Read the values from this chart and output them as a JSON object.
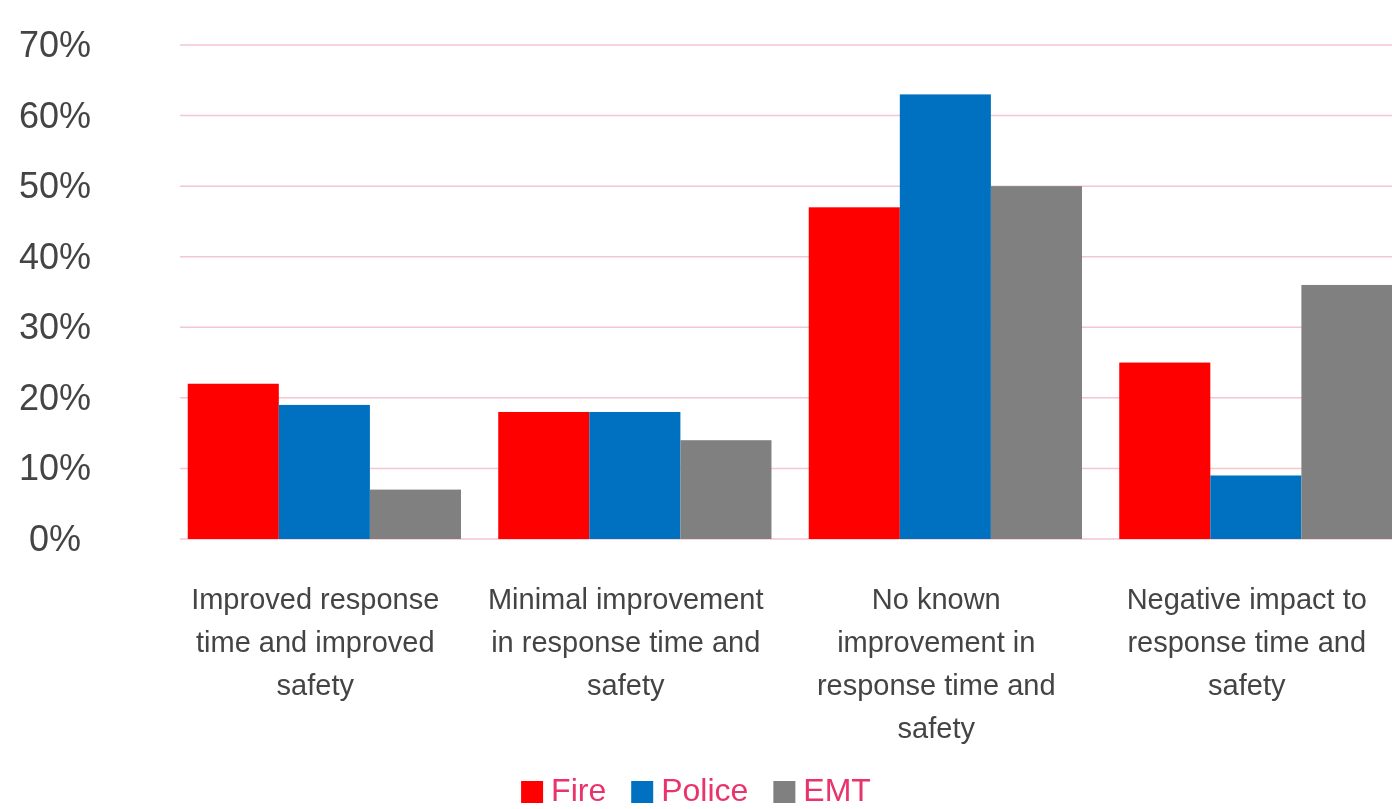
{
  "chart_data": {
    "type": "bar",
    "categories": [
      "Improved response time and improved safety",
      "Minimal improvement in response time and safety",
      "No known improvement in response time and safety",
      "Negative impact to response time and safety"
    ],
    "series": [
      {
        "name": "Fire",
        "color": "#ff0000",
        "values": [
          22,
          18,
          47,
          25
        ]
      },
      {
        "name": "Police",
        "color": "#0070c0",
        "values": [
          19,
          18,
          63,
          9
        ]
      },
      {
        "name": "EMT",
        "color": "#808080",
        "values": [
          7,
          14,
          50,
          36
        ]
      }
    ],
    "ylim": [
      0,
      70
    ],
    "yticks": [
      {
        "value": 0,
        "label": "0%"
      },
      {
        "value": 10,
        "label": "10%"
      },
      {
        "value": 20,
        "label": "20%"
      },
      {
        "value": 30,
        "label": "30%"
      },
      {
        "value": 40,
        "label": "40%"
      },
      {
        "value": 50,
        "label": "50%"
      },
      {
        "value": 60,
        "label": "60%"
      },
      {
        "value": 70,
        "label": "70%"
      }
    ],
    "grid": "y",
    "legend": "bottom"
  }
}
